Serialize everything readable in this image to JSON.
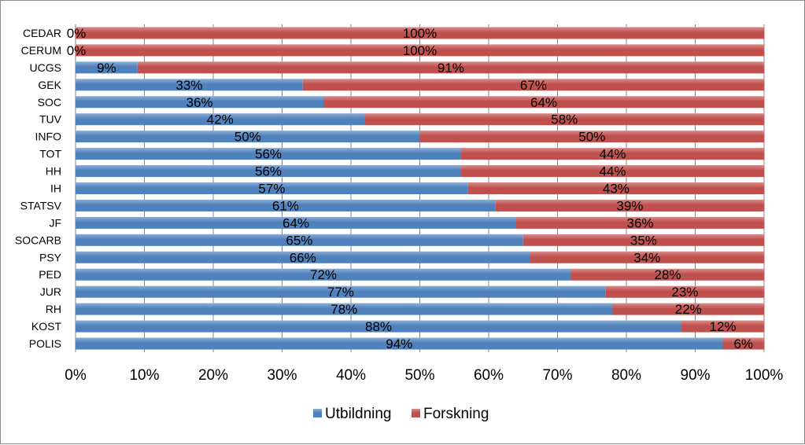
{
  "chart_data": {
    "type": "bar",
    "orientation": "horizontal",
    "stacked": "percent",
    "categories": [
      "CEDAR",
      "CERUM",
      "UCGS",
      "GEK",
      "SOC",
      "TUV",
      "INFO",
      "TOT",
      "HH",
      "IH",
      "STATSV",
      "JF",
      "SOCARB",
      "PSY",
      "PED",
      "JUR",
      "RH",
      "KOST",
      "POLIS"
    ],
    "series": [
      {
        "name": "Utbildning",
        "color": "#4f81bd",
        "values": [
          0,
          0,
          0.09,
          0.33,
          0.36,
          0.42,
          0.5,
          0.56,
          0.56,
          0.57,
          0.61,
          0.64,
          0.65,
          0.66,
          0.72,
          0.77,
          0.78,
          0.88,
          0.94
        ],
        "labels": [
          "0%",
          "0%",
          "9%",
          "33%",
          "36%",
          "42%",
          "50%",
          "56%",
          "56%",
          "57%",
          "61%",
          "64%",
          "65%",
          "66%",
          "72%",
          "77%",
          "78%",
          "88%",
          "94%"
        ]
      },
      {
        "name": "Forskning",
        "color": "#c0504d",
        "values": [
          1.0,
          1.0,
          0.91,
          0.67,
          0.64,
          0.58,
          0.5,
          0.44,
          0.44,
          0.43,
          0.39,
          0.36,
          0.35,
          0.34,
          0.28,
          0.23,
          0.22,
          0.12,
          0.06
        ],
        "labels": [
          "100%",
          "100%",
          "91%",
          "67%",
          "64%",
          "58%",
          "50%",
          "44%",
          "44%",
          "43%",
          "39%",
          "36%",
          "35%",
          "34%",
          "28%",
          "23%",
          "22%",
          "12%",
          "6%"
        ]
      }
    ],
    "xlim": [
      0,
      1
    ],
    "x_ticks": [
      0,
      0.1,
      0.2,
      0.3,
      0.4,
      0.5,
      0.6,
      0.7,
      0.8,
      0.9,
      1.0
    ],
    "x_tick_labels": [
      "0%",
      "10%",
      "20%",
      "30%",
      "40%",
      "50%",
      "60%",
      "70%",
      "80%",
      "90%",
      "100%"
    ],
    "grid": true,
    "legend_position": "bottom",
    "title": "",
    "xlabel": "",
    "ylabel": ""
  }
}
